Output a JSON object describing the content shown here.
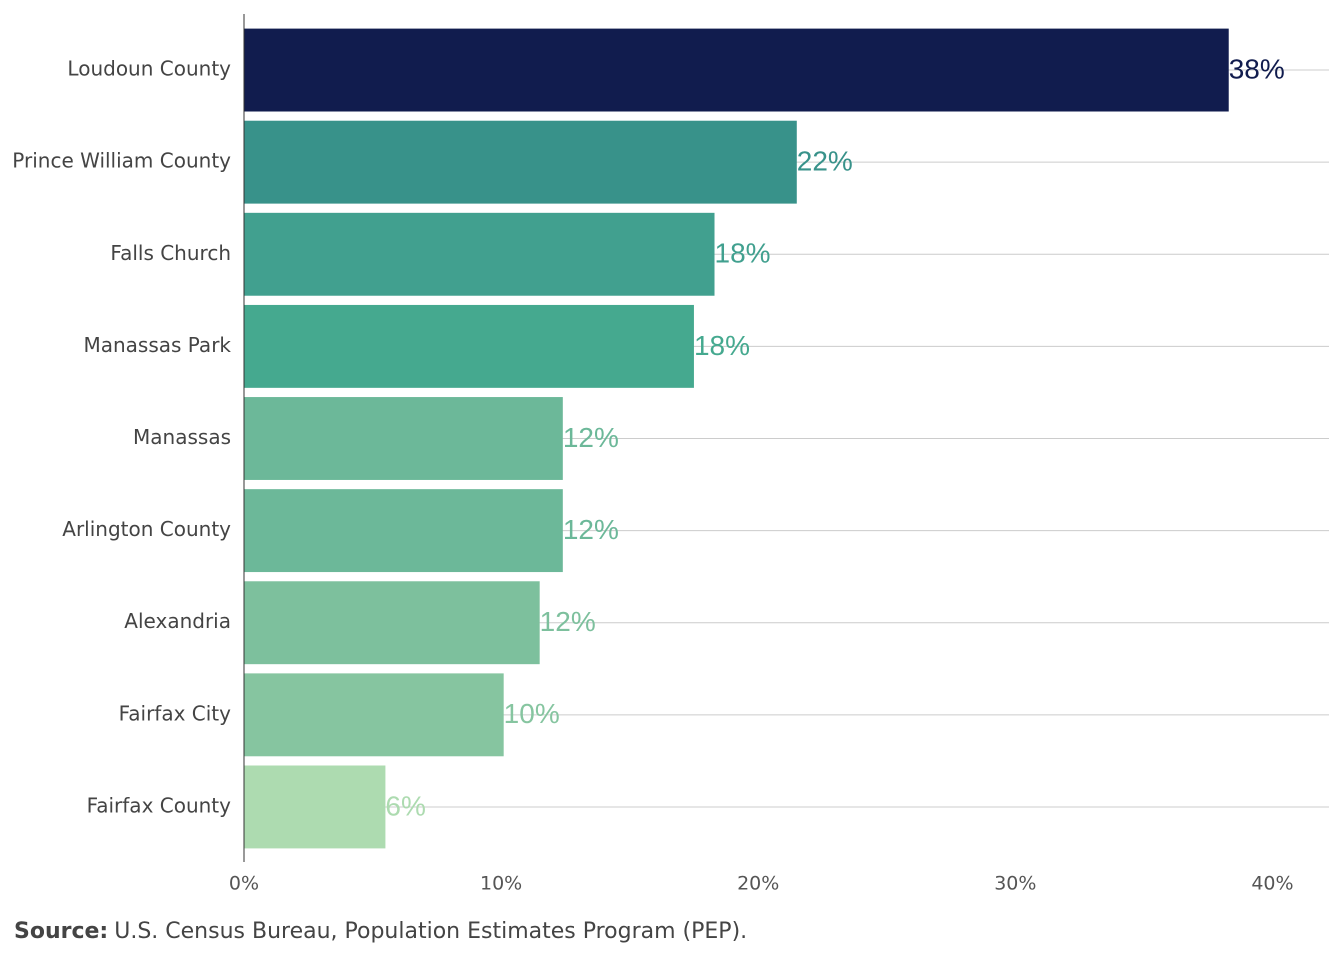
{
  "chart_data": {
    "type": "bar",
    "orientation": "horizontal",
    "categories": [
      "Loudoun County",
      "Prince William County",
      "Falls Church",
      "Manassas Park",
      "Manassas",
      "Arlington County",
      "Alexandria",
      "Fairfax City",
      "Fairfax County"
    ],
    "values": [
      38.3,
      21.5,
      18.3,
      17.5,
      12.4,
      12.4,
      11.5,
      10.1,
      5.5
    ],
    "value_labels": [
      "38%",
      "22%",
      "18%",
      "18%",
      "12%",
      "12%",
      "12%",
      "10%",
      "6%"
    ],
    "colors": [
      "#111c4e",
      "#38928a",
      "#41a08f",
      "#45a98f",
      "#6cb899",
      "#6cb899",
      "#7dc09d",
      "#86c5a0",
      "#addbb0"
    ],
    "xlim": [
      0,
      42.2
    ],
    "xticks": [
      {
        "value": 0,
        "label": "0%"
      },
      {
        "value": 10,
        "label": "10%"
      },
      {
        "value": 20,
        "label": "20%"
      },
      {
        "value": 30,
        "label": "30%"
      },
      {
        "value": 40,
        "label": "40%"
      }
    ],
    "grid": true,
    "source_label": "Source:",
    "source_text": "U.S. Census Bureau, Population Estimates Program (PEP)."
  }
}
